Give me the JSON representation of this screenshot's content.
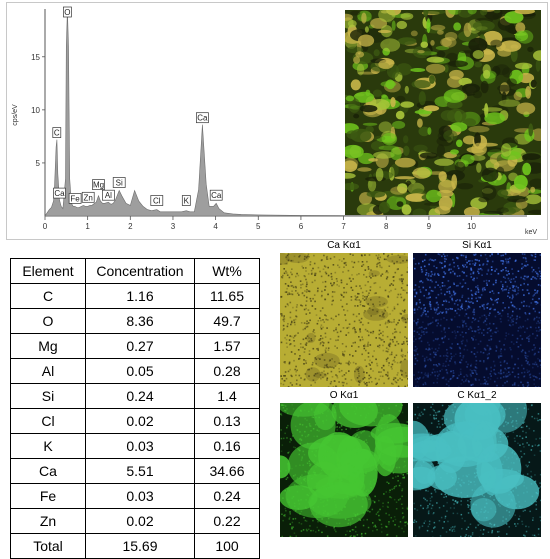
{
  "chart_data": {
    "type": "line",
    "title": "",
    "xlabel": "keV",
    "ylabel": "cps/eV",
    "xlim": [
      0,
      11.3
    ],
    "ylim": [
      0,
      19.5
    ],
    "x_ticks": [
      0,
      1,
      2,
      3,
      4,
      5,
      6,
      7,
      8,
      9,
      10
    ],
    "y_ticks": [
      5,
      10,
      15
    ],
    "grid": false,
    "series": [
      {
        "name": "",
        "x": [
          0,
          0.05,
          0.1,
          0.15,
          0.2,
          0.22,
          0.26,
          0.28,
          0.3,
          0.34,
          0.38,
          0.42,
          0.48,
          0.5,
          0.525,
          0.55,
          0.58,
          0.62,
          0.66,
          0.7,
          0.75,
          0.8,
          0.85,
          0.9,
          0.95,
          1.0,
          1.05,
          1.1,
          1.16,
          1.2,
          1.254,
          1.3,
          1.35,
          1.4,
          1.487,
          1.55,
          1.6,
          1.65,
          1.74,
          1.8,
          1.9,
          2.0,
          2.1,
          2.2,
          2.3,
          2.4,
          2.5,
          2.622,
          2.7,
          2.8,
          2.9,
          3.0,
          3.1,
          3.2,
          3.313,
          3.4,
          3.5,
          3.6,
          3.691,
          3.78,
          3.85,
          3.95,
          4.013,
          4.08,
          4.2,
          4.4,
          4.6,
          4.8,
          5.0,
          5.5,
          6.0,
          7.0,
          8.0,
          9.0,
          10.0,
          11.3
        ],
        "y": [
          0,
          0.3,
          0.6,
          0.8,
          1.4,
          2.5,
          6.5,
          7.2,
          4.0,
          1.5,
          0.9,
          0.7,
          3.5,
          16.0,
          19.4,
          16.0,
          3.5,
          1.2,
          0.9,
          0.9,
          0.8,
          0.8,
          0.9,
          1.0,
          0.9,
          0.9,
          1.0,
          1.0,
          1.2,
          1.3,
          1.9,
          1.4,
          1.2,
          1.2,
          1.3,
          1.1,
          1.2,
          1.5,
          2.4,
          1.9,
          1.2,
          1.0,
          2.4,
          1.4,
          0.9,
          0.6,
          0.5,
          0.6,
          0.4,
          0.4,
          0.4,
          0.4,
          0.4,
          0.4,
          0.5,
          0.4,
          0.4,
          2.5,
          8.6,
          3.0,
          0.9,
          0.9,
          1.2,
          0.7,
          0.3,
          0.2,
          0.15,
          0.12,
          0.1,
          0.08,
          0.06,
          0.05,
          0.04,
          0.03,
          0.02,
          0
        ]
      }
    ],
    "peak_labels": [
      {
        "label": "O",
        "x": 0.525,
        "y": 19.4
      },
      {
        "label": "C",
        "x": 0.277,
        "y": 7.2
      },
      {
        "label": "Ca",
        "x": 3.691,
        "y": 8.6
      },
      {
        "label": "Ca",
        "x": 0.341,
        "y": 1.5
      },
      {
        "label": "Fe",
        "x": 0.705,
        "y": 1.0
      },
      {
        "label": "Zn",
        "x": 1.012,
        "y": 1.1
      },
      {
        "label": "Mg",
        "x": 1.254,
        "y": 2.3
      },
      {
        "label": "Al",
        "x": 1.487,
        "y": 1.3
      },
      {
        "label": "Si",
        "x": 1.74,
        "y": 2.5
      },
      {
        "label": "Cl",
        "x": 2.622,
        "y": 0.8
      },
      {
        "label": "K",
        "x": 3.313,
        "y": 0.8
      },
      {
        "label": "Ca",
        "x": 4.013,
        "y": 1.3
      }
    ]
  },
  "table": {
    "headers": [
      "Element",
      "Concentration",
      "Wt%"
    ],
    "rows": [
      [
        "C",
        "1.16",
        "11.65"
      ],
      [
        "O",
        "8.36",
        "49.7"
      ],
      [
        "Mg",
        "0.27",
        "1.57"
      ],
      [
        "Al",
        "0.05",
        "0.28"
      ],
      [
        "Si",
        "0.24",
        "1.4"
      ],
      [
        "Cl",
        "0.02",
        "0.13"
      ],
      [
        "K",
        "0.03",
        "0.16"
      ],
      [
        "Ca",
        "5.51",
        "34.66"
      ],
      [
        "Fe",
        "0.03",
        "0.24"
      ],
      [
        "Zn",
        "0.02",
        "0.22"
      ],
      [
        "Total",
        "15.69",
        "100"
      ]
    ]
  },
  "maps": [
    {
      "label": "Ca Kα1",
      "color": "#b8ad34",
      "dark": "#4a4416",
      "mode": "speckle"
    },
    {
      "label": "Si Kα1",
      "color": "#3b68d4",
      "dark": "#050c2e",
      "mode": "sparse"
    },
    {
      "label": "O Kα1",
      "color": "#46c732",
      "dark": "#0a1f08",
      "mode": "blobs"
    },
    {
      "label": "C Kα1_2",
      "color": "#49bfc2",
      "dark": "#061818",
      "mode": "blobs"
    }
  ],
  "sem_image": {
    "colors": [
      "#6fc51d",
      "#a8c43a",
      "#3d5a12",
      "#1a2208",
      "#c9b64a"
    ]
  }
}
